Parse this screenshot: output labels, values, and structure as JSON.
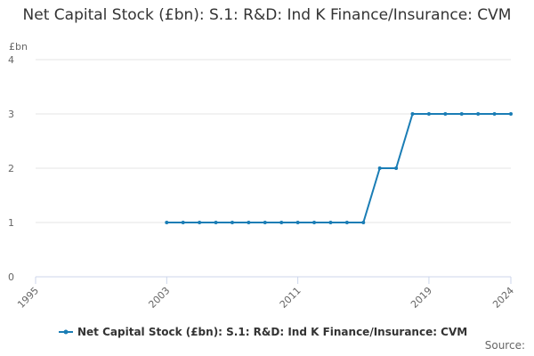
{
  "chart_data": {
    "type": "line",
    "title": "Net Capital Stock (£bn): S.1: R&D: Ind K Finance/Insurance: CVM",
    "y_label": "£bn",
    "source": "Source:",
    "x": [
      2003,
      2004,
      2005,
      2006,
      2007,
      2008,
      2009,
      2010,
      2011,
      2012,
      2013,
      2014,
      2015,
      2016,
      2017,
      2018,
      2019,
      2020,
      2021,
      2022,
      2023,
      2024
    ],
    "series": [
      {
        "name": "Net Capital Stock (£bn): S.1: R&D: Ind K Finance/Insurance: CVM",
        "color": "#1a7db5",
        "values": [
          1,
          1,
          1,
          1,
          1,
          1,
          1,
          1,
          1,
          1,
          1,
          1,
          1,
          2,
          2,
          3,
          3,
          3,
          3,
          3,
          3,
          3
        ]
      }
    ],
    "xlim": [
      1995,
      2024
    ],
    "xticks": [
      1995,
      2003,
      2011,
      2019,
      2024
    ],
    "ylim": [
      0,
      4
    ],
    "yticks": [
      0,
      1,
      2,
      3,
      4
    ],
    "grid": true
  }
}
